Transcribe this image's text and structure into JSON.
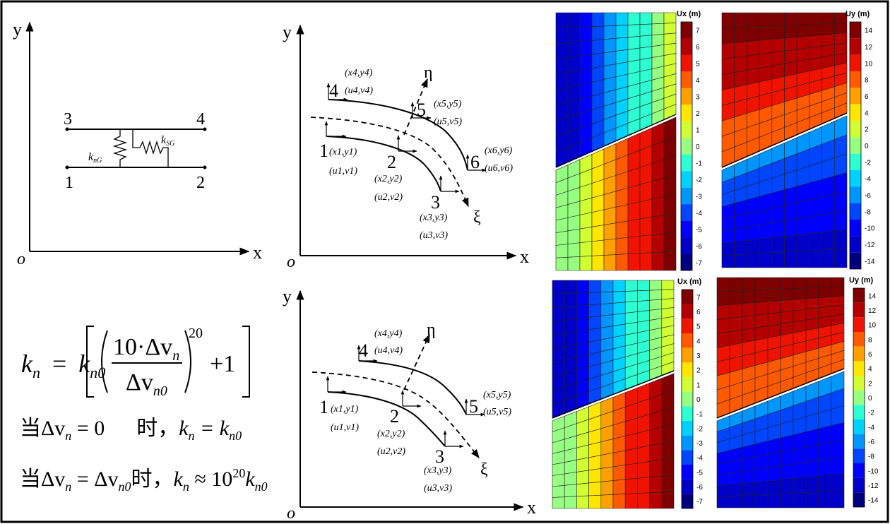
{
  "axes": {
    "x": "x",
    "y": "y",
    "origin": "o",
    "xi": "ξ",
    "eta": "η"
  },
  "panel_spring": {
    "nodes": [
      "1",
      "2",
      "3",
      "4"
    ],
    "kn_label": "k",
    "kn_sub": "nG",
    "ks_label": "k",
    "ks_sub": "SG"
  },
  "panel_six": {
    "nodes": [
      "1",
      "2",
      "3",
      "4",
      "5",
      "6"
    ],
    "labels": [
      {
        "x": "x1",
        "y": "y1",
        "u": "u1",
        "v": "v1"
      },
      {
        "x": "x2",
        "y": "y2",
        "u": "u2",
        "v": "v2"
      },
      {
        "x": "x3",
        "y": "y3",
        "u": "u3",
        "v": "v3"
      },
      {
        "x": "x4",
        "y": "y4",
        "u": "u4",
        "v": "v4"
      },
      {
        "x": "x5",
        "y": "y5",
        "u": "u5",
        "v": "v5"
      },
      {
        "x": "x6",
        "y": "y6",
        "u": "u6",
        "v": "v6"
      }
    ]
  },
  "panel_five": {
    "nodes": [
      "1",
      "2",
      "3",
      "4",
      "5"
    ]
  },
  "formula": {
    "lhs": "k",
    "lhs_sub": "n",
    "eq": "=",
    "coef": "k",
    "coef_sub": "n0",
    "num": "10·Δv",
    "num_sub": "n",
    "den": "Δv",
    "den_sub": "n0",
    "exp": "20",
    "plus": "+1",
    "cond1": "当Δv",
    "cond1_sub": "n",
    "cond1_rest": " = 0      时，",
    "cond1_res": "k",
    "cond1_res_sub": "n",
    "cond1_eq": " = k",
    "cond1_eq_sub": "n0",
    "cond2": "当Δv",
    "cond2_sub": "n",
    "cond2_mid": " = Δv",
    "cond2_mid_sub": "n0",
    "cond2_rest": "时，",
    "cond2_res": "k",
    "cond2_res_sub": "n",
    "cond2_approx": " ≈ 10",
    "cond2_exp": "20",
    "cond2_k": "k",
    "cond2_k_sub": "n0"
  },
  "contours": [
    {
      "title": "Ux (m)",
      "ticks": [
        "7",
        "6",
        "5",
        "4",
        "3",
        "2",
        "1",
        "0",
        "-1",
        "-2",
        "-3",
        "-4",
        "-5",
        "-6",
        "-7"
      ]
    },
    {
      "title": "Uy (m)",
      "ticks": [
        "14",
        "12",
        "10",
        "8",
        "6",
        "4",
        "2",
        "0",
        "-2",
        "-4",
        "-6",
        "-8",
        "-10",
        "-12",
        "-14"
      ]
    },
    {
      "title": "Ux (m)",
      "ticks": [
        "7",
        "6",
        "5",
        "4",
        "3",
        "2",
        "1",
        "0",
        "-1",
        "-2",
        "-3",
        "-4",
        "-5",
        "-6",
        "-7"
      ]
    },
    {
      "title": "Uy (m)",
      "ticks": [
        "14",
        "12",
        "10",
        "8",
        "6",
        "4",
        "2",
        "0",
        "-2",
        "-4",
        "-6",
        "-8",
        "-10",
        "-12",
        "-14"
      ]
    }
  ],
  "colors": {
    "jet": [
      "#00007f",
      "#0000c8",
      "#0000ff",
      "#0046ff",
      "#0096ff",
      "#00d2ff",
      "#2dffd2",
      "#96ff82",
      "#d2ff32",
      "#ffe600",
      "#ffa000",
      "#ff5a00",
      "#f01400",
      "#b40000",
      "#7f0000"
    ]
  }
}
